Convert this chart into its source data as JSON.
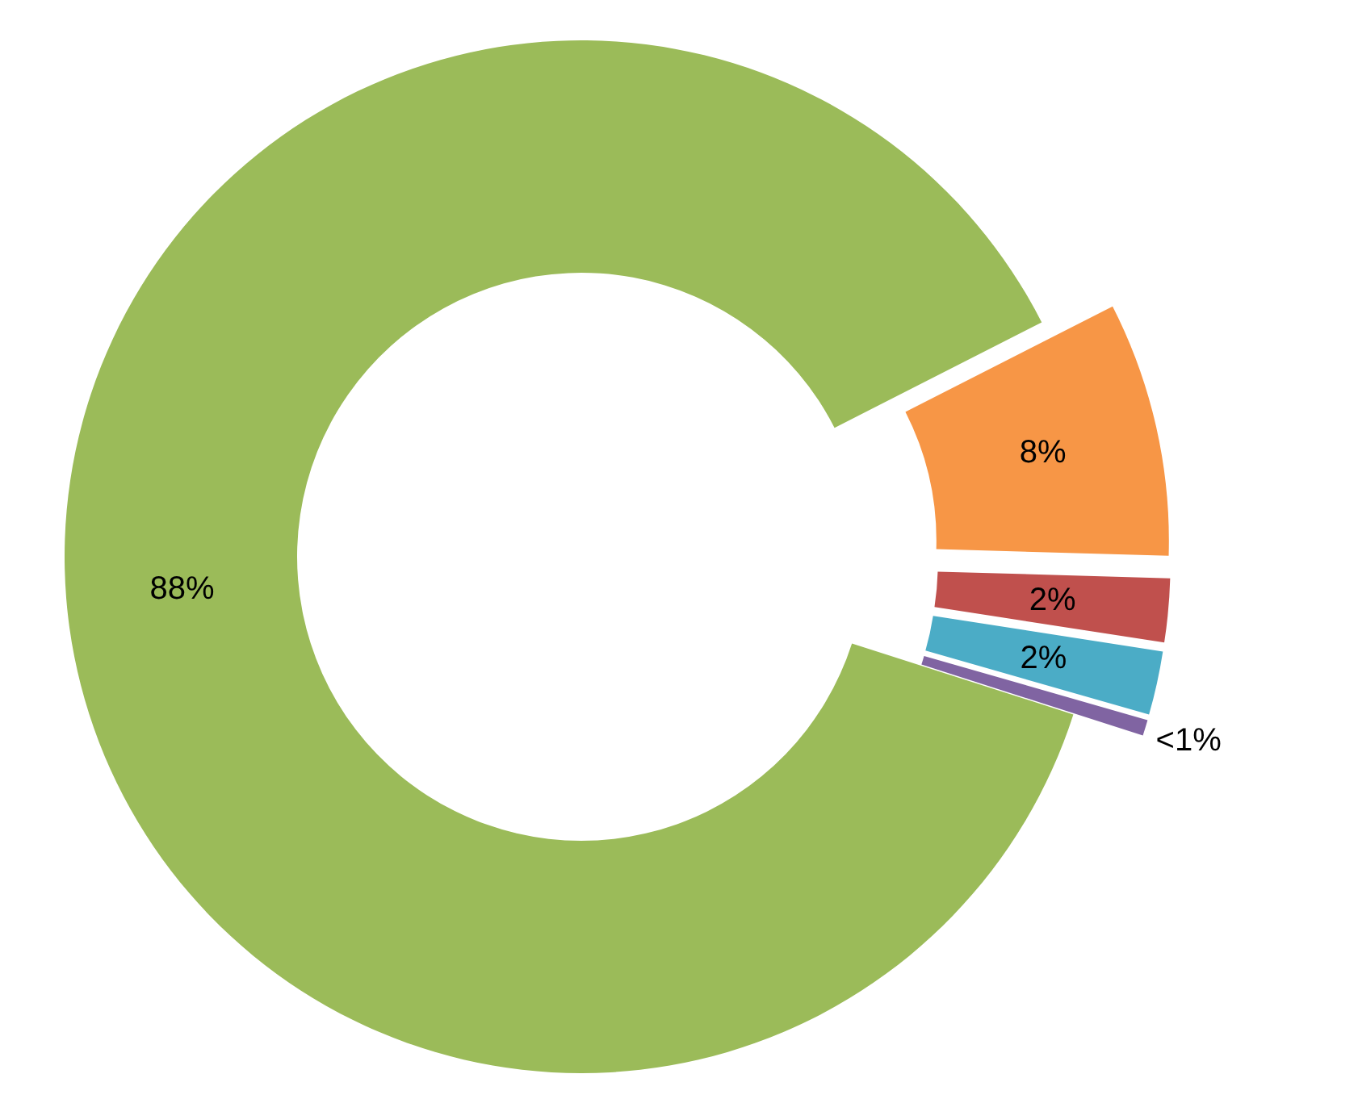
{
  "chart_data": {
    "type": "donut",
    "categories": [
      null,
      null,
      null,
      null,
      null
    ],
    "values": [
      8,
      2,
      2,
      0.5,
      88
    ],
    "colors": [
      "#f79646",
      "#c0504d",
      "#4bacc6",
      "#8064a2",
      "#9bbb59"
    ],
    "value_labels": [
      "8%",
      "2%",
      "2%",
      "<1%",
      "88%"
    ]
  }
}
